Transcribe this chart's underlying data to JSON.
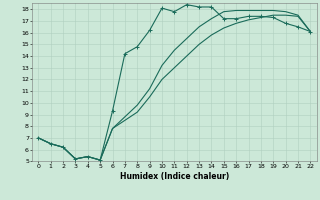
{
  "xlabel": "Humidex (Indice chaleur)",
  "bg_color": "#cce8d8",
  "grid_color": "#b0cfc0",
  "line_color": "#1a6b5a",
  "xlim": [
    -0.5,
    22.5
  ],
  "ylim": [
    5,
    18.5
  ],
  "yticks": [
    5,
    6,
    7,
    8,
    9,
    10,
    11,
    12,
    13,
    14,
    15,
    16,
    17,
    18
  ],
  "xticks": [
    0,
    1,
    2,
    3,
    4,
    5,
    6,
    7,
    8,
    9,
    10,
    11,
    12,
    13,
    14,
    15,
    16,
    17,
    18,
    19,
    20,
    21,
    22
  ],
  "line1_x": [
    0,
    1,
    2,
    3,
    4,
    5,
    6,
    7,
    8,
    9,
    10,
    11,
    12,
    13,
    14,
    15,
    16,
    17,
    18,
    19,
    20,
    21,
    22
  ],
  "line1_y": [
    7.0,
    6.5,
    6.2,
    5.2,
    5.4,
    5.1,
    9.3,
    14.2,
    14.8,
    16.2,
    18.1,
    17.8,
    18.4,
    18.2,
    18.2,
    17.2,
    17.2,
    17.4,
    17.4,
    17.3,
    16.8,
    16.5,
    16.1
  ],
  "line2_x": [
    0,
    1,
    2,
    3,
    4,
    5,
    6,
    7,
    8,
    9,
    10,
    11,
    12,
    13,
    14,
    15,
    16,
    17,
    18,
    19,
    20,
    21,
    22
  ],
  "line2_y": [
    7.0,
    6.5,
    6.2,
    5.2,
    5.4,
    5.1,
    7.8,
    8.5,
    9.2,
    10.5,
    12.0,
    13.0,
    14.0,
    15.0,
    15.8,
    16.4,
    16.8,
    17.1,
    17.3,
    17.5,
    17.5,
    17.4,
    16.1
  ],
  "line3_x": [
    0,
    1,
    2,
    3,
    4,
    5,
    6,
    7,
    8,
    9,
    10,
    11,
    12,
    13,
    14,
    15,
    16,
    17,
    18,
    19,
    20,
    21,
    22
  ],
  "line3_y": [
    7.0,
    6.5,
    6.2,
    5.2,
    5.4,
    5.1,
    7.8,
    8.8,
    9.8,
    11.2,
    13.2,
    14.5,
    15.5,
    16.5,
    17.2,
    17.8,
    17.9,
    17.9,
    17.9,
    17.9,
    17.8,
    17.5,
    16.1
  ]
}
